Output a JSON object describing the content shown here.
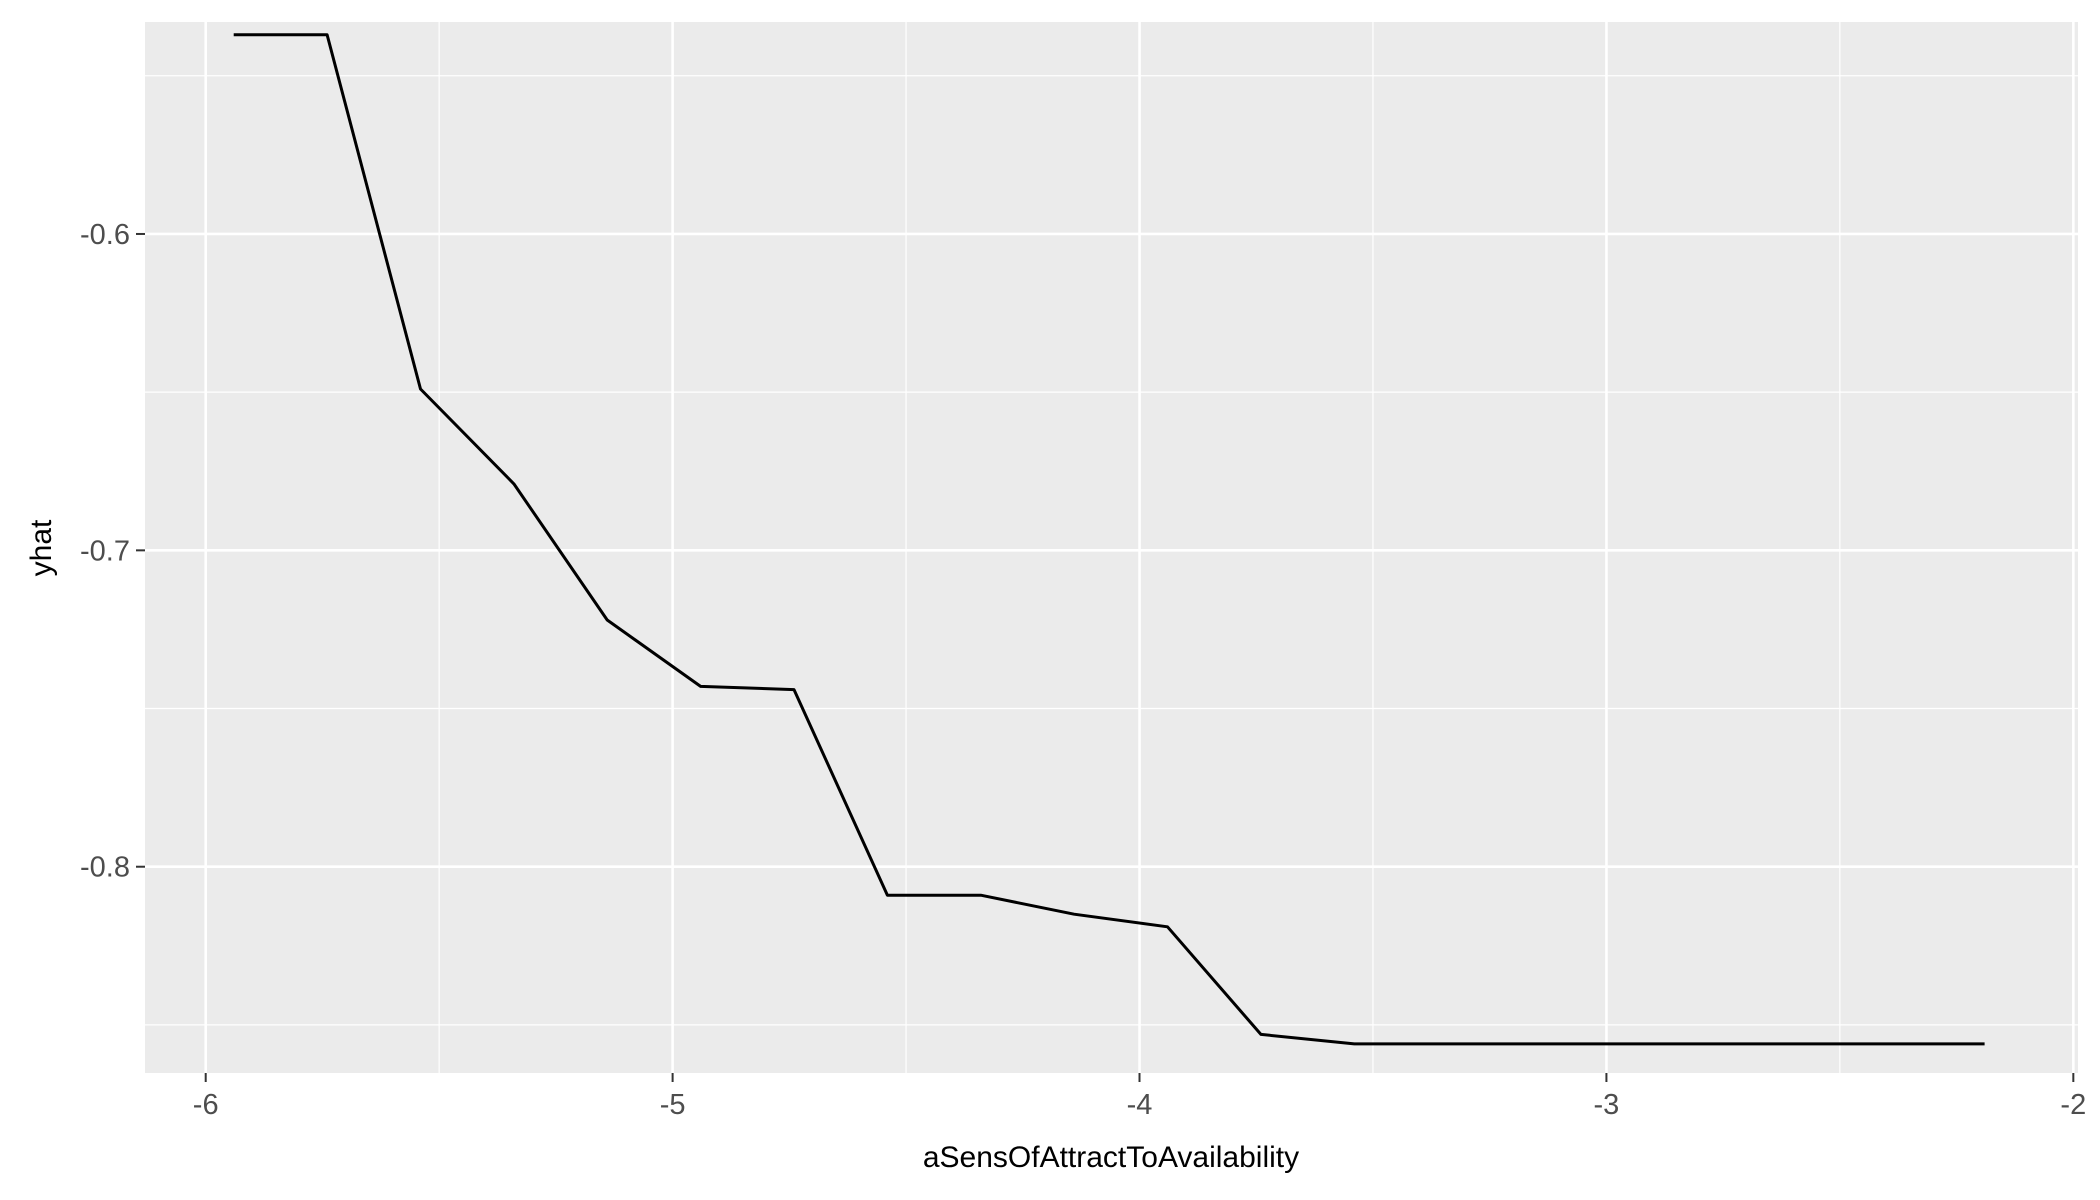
{
  "chart_data": {
    "type": "line",
    "title": "",
    "xlabel": "aSensOfAttractToAvailability",
    "ylabel": "yhat",
    "xlim": [
      -6.13,
      -1.99
    ],
    "ylim": [
      -0.8652,
      -0.533
    ],
    "x_major_ticks": [
      -6,
      -5,
      -4,
      -3,
      -2
    ],
    "x_tick_labels": [
      "-6",
      "-5",
      "-4",
      "-3",
      "-2"
    ],
    "x_minor_ticks": [
      -5.5,
      -4.5,
      -3.5,
      -2.5
    ],
    "y_major_ticks": [
      -0.6,
      -0.7,
      -0.8
    ],
    "y_tick_labels": [
      "-0.6",
      "-0.7",
      "-0.8"
    ],
    "y_minor_ticks": [
      -0.55,
      -0.65,
      -0.75,
      -0.85
    ],
    "grid": true,
    "legend": "none",
    "colors": {
      "panel": "#ebebeb",
      "grid": "#ffffff",
      "line": "#000000",
      "tick": "#333333"
    },
    "series": [
      {
        "x": [
          -5.94,
          -5.74,
          -5.54,
          -5.34,
          -5.14,
          -4.94,
          -4.74,
          -4.54,
          -4.34,
          -4.14,
          -3.94,
          -3.74,
          -3.54,
          -3.34,
          -3.14,
          -2.94,
          -2.74,
          -2.54,
          -2.34,
          -2.19
        ],
        "y": [
          -0.537,
          -0.537,
          -0.649,
          -0.679,
          -0.722,
          -0.743,
          -0.744,
          -0.809,
          -0.809,
          -0.815,
          -0.819,
          -0.853,
          -0.856,
          -0.856,
          -0.856,
          -0.856,
          -0.856,
          -0.856,
          -0.856,
          -0.856
        ]
      }
    ]
  }
}
